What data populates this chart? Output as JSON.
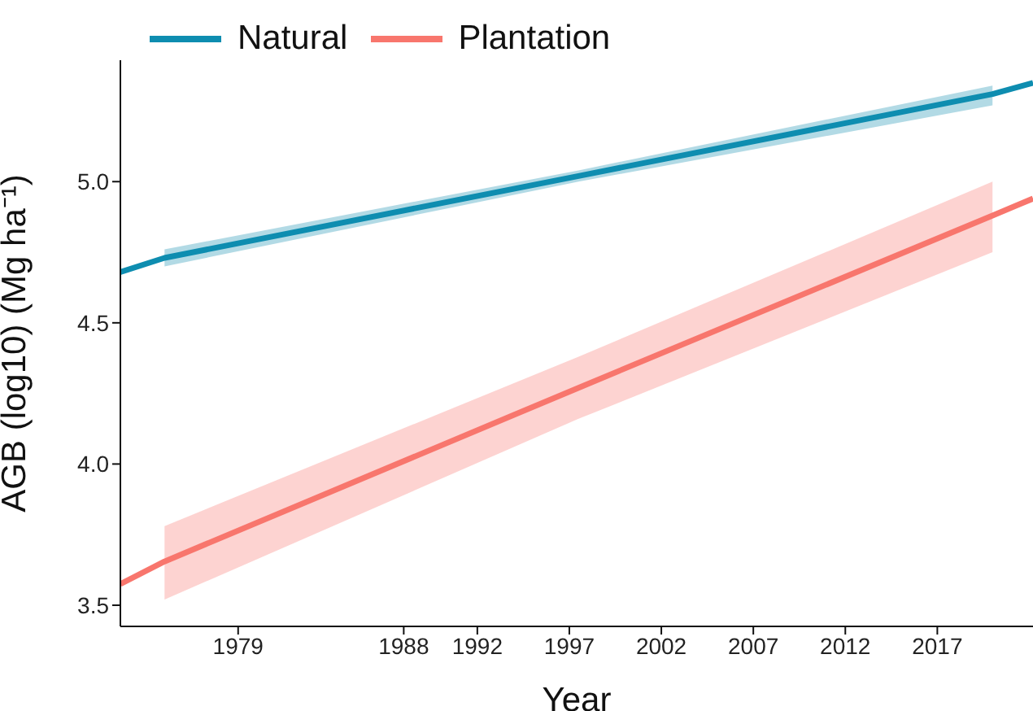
{
  "chart_data": {
    "type": "line",
    "xlabel": "Year",
    "ylabel": "AGB (log10) (Mg ha⁻¹)",
    "x": [
      1972.6,
      1975,
      1997.5,
      2020,
      2022.2
    ],
    "series": [
      {
        "name": "Natural",
        "color": "#0e8db0",
        "values": [
          4.68,
          4.73,
          5.02,
          5.31,
          5.35
        ],
        "lower": [
          null,
          4.7,
          5.0,
          5.27,
          null
        ],
        "upper": [
          null,
          4.76,
          5.04,
          5.34,
          null
        ]
      },
      {
        "name": "Plantation",
        "color": "#f8766d",
        "values": [
          3.575,
          3.655,
          4.27,
          4.88,
          4.94
        ],
        "lower": [
          null,
          3.52,
          4.16,
          4.75,
          null
        ],
        "upper": [
          null,
          3.78,
          4.38,
          5.0,
          null
        ]
      }
    ],
    "xlim": [
      1972.6,
      2022.2
    ],
    "xticks": [
      1979,
      1988,
      1992,
      1997,
      2002,
      2007,
      2012,
      2017
    ],
    "ylim": [
      3.425,
      5.43
    ],
    "yticks": [
      3.5,
      {
        "value": 4,
        "label": "4.0"
      },
      4.5,
      {
        "value": 5,
        "label": "5.0"
      }
    ],
    "grid": false,
    "legend": "top left",
    "marker": "none",
    "line_style": "solid"
  }
}
